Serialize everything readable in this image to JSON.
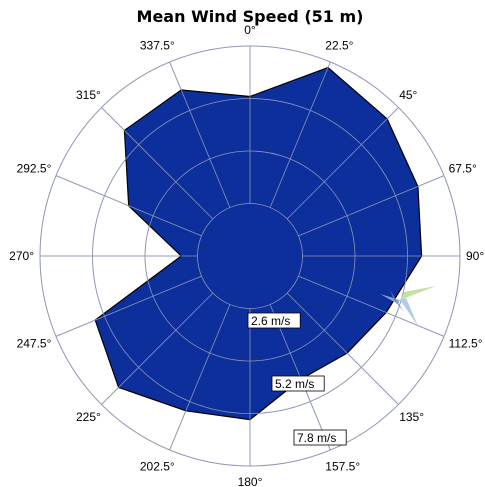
{
  "chart_data": {
    "type": "polar-area",
    "title": "Mean Wind Speed (51 m)",
    "direction_labels": [
      "0°",
      "22.5°",
      "45°",
      "67.5°",
      "90°",
      "112.5°",
      "135°",
      "157.5°",
      "180°",
      "202.5°",
      "225°",
      "247.5°",
      "270°",
      "292.5°",
      "315°",
      "337.5°"
    ],
    "directions_deg": [
      0,
      22.5,
      45,
      67.5,
      90,
      112.5,
      135,
      157.5,
      180,
      202.5,
      225,
      247.5,
      270,
      292.5,
      315,
      337.5
    ],
    "values_ms": [
      7.9,
      10.1,
      9.6,
      9.0,
      8.5,
      7.3,
      6.8,
      6.6,
      8.1,
      8.3,
      9.2,
      8.3,
      3.4,
      6.5,
      8.8,
      8.9
    ],
    "radial_max_ms": 10.4,
    "rings_ms": [
      2.6,
      5.2,
      7.8,
      10.4
    ],
    "ring_labels": [
      "2.6 m/s",
      "5.2 m/s",
      "7.8 m/s"
    ],
    "fill_color": "#0d2f9c",
    "outline_color": "#000000",
    "grid_color": "#bbbbbb",
    "grid": true
  },
  "watermark": {
    "name": "logo-icon"
  }
}
